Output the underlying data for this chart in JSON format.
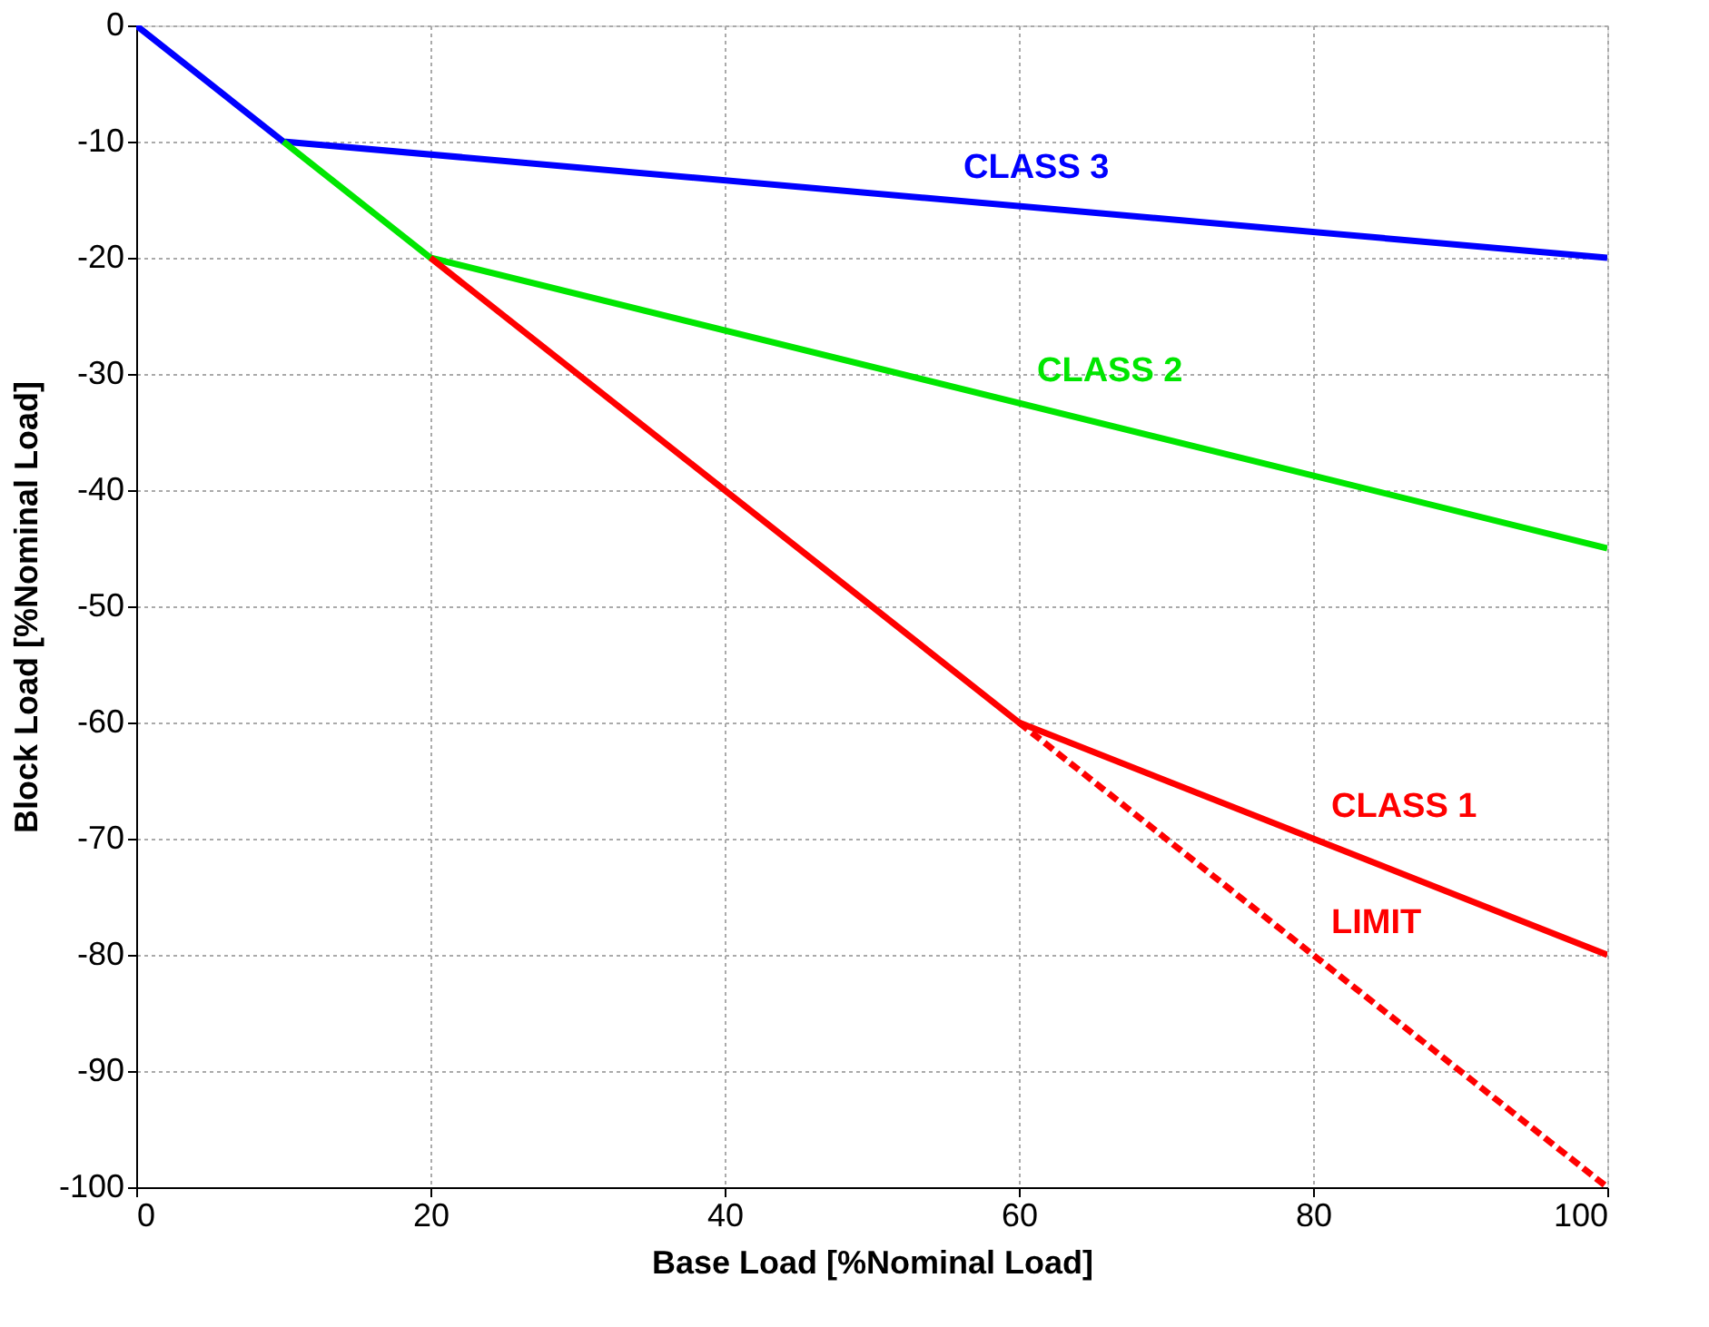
{
  "chart_data": {
    "type": "line",
    "xlabel": "Base Load [%Nominal Load]",
    "ylabel": "Block Load [%Nominal Load]",
    "xlim": [
      0,
      100
    ],
    "ylim": [
      -100,
      0
    ],
    "xticks": [
      0,
      20,
      40,
      60,
      80,
      100
    ],
    "yticks": [
      0,
      -10,
      -20,
      -30,
      -40,
      -50,
      -60,
      -70,
      -80,
      -90,
      -100
    ],
    "grid": true,
    "marker": "none",
    "series": [
      {
        "name": "CLASS 3",
        "color": "#0000ff",
        "x": [
          0,
          10,
          100
        ],
        "values": [
          0,
          -10,
          -20
        ],
        "line_style": "solid"
      },
      {
        "name": "CLASS 2",
        "color": "#00e600",
        "x": [
          10,
          20,
          100
        ],
        "values": [
          -10,
          -20,
          -45
        ],
        "line_style": "solid"
      },
      {
        "name": "CLASS 1",
        "color": "#ff0000",
        "x": [
          20,
          60,
          100
        ],
        "values": [
          -20,
          -60,
          -80
        ],
        "line_style": "solid"
      },
      {
        "name": "LIMIT",
        "color": "#ff0000",
        "x": [
          60,
          100
        ],
        "values": [
          -60,
          -100
        ],
        "line_style": "dashed"
      }
    ]
  }
}
